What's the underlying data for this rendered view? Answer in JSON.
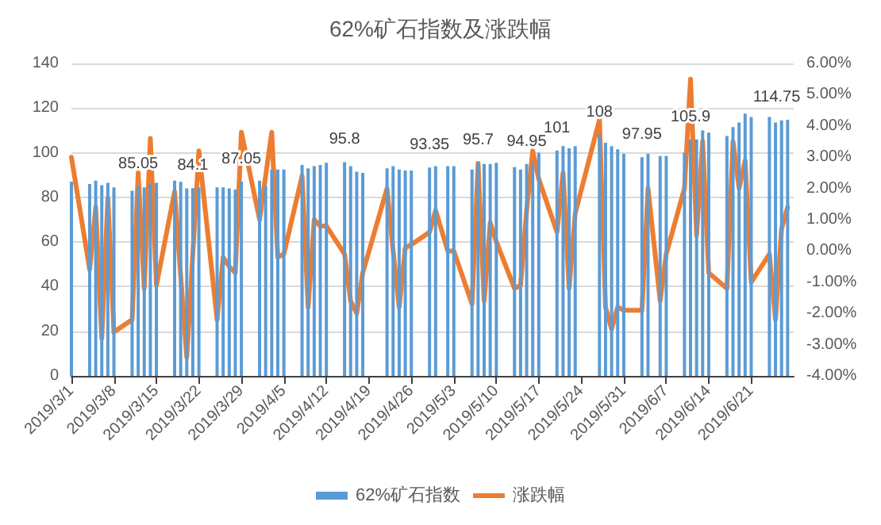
{
  "chart_data": {
    "type": "bar",
    "title": "62%矿石指数及涨跌幅",
    "x": [
      "2019-03-01",
      "2019-03-04",
      "2019-03-05",
      "2019-03-06",
      "2019-03-07",
      "2019-03-08",
      "2019-03-11",
      "2019-03-12",
      "2019-03-13",
      "2019-03-14",
      "2019-03-15",
      "2019-03-18",
      "2019-03-19",
      "2019-03-20",
      "2019-03-21",
      "2019-03-22",
      "2019-03-25",
      "2019-03-26",
      "2019-03-27",
      "2019-03-28",
      "2019-03-29",
      "2019-04-01",
      "2019-04-02",
      "2019-04-03",
      "2019-04-04",
      "2019-04-05",
      "2019-04-08",
      "2019-04-09",
      "2019-04-10",
      "2019-04-11",
      "2019-04-12",
      "2019-04-15",
      "2019-04-16",
      "2019-04-17",
      "2019-04-18",
      "2019-04-22",
      "2019-04-23",
      "2019-04-24",
      "2019-04-25",
      "2019-04-26",
      "2019-04-29",
      "2019-04-30",
      "2019-05-02",
      "2019-05-03",
      "2019-05-06",
      "2019-05-07",
      "2019-05-08",
      "2019-05-09",
      "2019-05-10",
      "2019-05-13",
      "2019-05-14",
      "2019-05-15",
      "2019-05-16",
      "2019-05-17",
      "2019-05-20",
      "2019-05-21",
      "2019-05-22",
      "2019-05-23",
      "2019-05-27",
      "2019-05-28",
      "2019-05-29",
      "2019-05-30",
      "2019-05-31",
      "2019-06-03",
      "2019-06-04",
      "2019-06-06",
      "2019-06-07",
      "2019-06-10",
      "2019-06-11",
      "2019-06-12",
      "2019-06-13",
      "2019-06-14",
      "2019-06-17",
      "2019-06-18",
      "2019-06-19",
      "2019-06-20",
      "2019-06-21",
      "2019-06-24",
      "2019-06-25",
      "2019-06-26",
      "2019-06-27"
    ],
    "series": [
      {
        "name": "62%矿石指数",
        "color": "#5b9bd5",
        "values": [
          87,
          86,
          87.5,
          85.5,
          86.5,
          84.5,
          83,
          85.05,
          84.5,
          86,
          86.5,
          87.5,
          87,
          84,
          84.1,
          84.5,
          84.5,
          84.5,
          84,
          83.5,
          87.05,
          87.5,
          85,
          92.5,
          92.5,
          92.5,
          94.5,
          93,
          94,
          94.5,
          95.5,
          95.8,
          94,
          91.5,
          91,
          93,
          94,
          92.5,
          92,
          92,
          93.35,
          94,
          94,
          94,
          92.5,
          95.7,
          95,
          95,
          95.5,
          93.5,
          92.5,
          94.95,
          95.5,
          100,
          101,
          103,
          102,
          103,
          108,
          104.5,
          103,
          101.5,
          99.5,
          97.95,
          99.5,
          98.5,
          98.5,
          100,
          105.9,
          106,
          110,
          109,
          107.5,
          111.5,
          113.5,
          117.5,
          116,
          116,
          113.5,
          114.5,
          114.75
        ],
        "value_labels": [
          null,
          null,
          null,
          null,
          null,
          null,
          null,
          "85.05",
          null,
          null,
          null,
          null,
          null,
          null,
          "84.1",
          null,
          null,
          null,
          null,
          null,
          "87.05",
          null,
          null,
          null,
          null,
          null,
          null,
          null,
          null,
          null,
          null,
          "95.8",
          null,
          null,
          null,
          null,
          null,
          null,
          null,
          null,
          "93.35",
          null,
          null,
          null,
          null,
          "95.7",
          null,
          null,
          null,
          null,
          null,
          "94.95",
          null,
          null,
          "101",
          null,
          null,
          null,
          "108",
          null,
          null,
          null,
          null,
          "97.95",
          null,
          null,
          null,
          null,
          "105.9",
          null,
          null,
          null,
          null,
          null,
          null,
          null,
          null,
          null,
          null,
          null,
          "114.75"
        ]
      },
      {
        "name": "涨跌幅",
        "type": "line",
        "axis": "y2",
        "color": "#ed7d31",
        "values": [
          3.0,
          -0.6,
          1.4,
          -2.8,
          1.7,
          -2.6,
          -2.2,
          2.5,
          -1.2,
          3.6,
          -1.1,
          1.9,
          -0.8,
          -3.4,
          -0.1,
          3.2,
          -2.2,
          -0.2,
          -0.5,
          -0.7,
          3.8,
          1.0,
          2.4,
          3.8,
          -0.2,
          -0.1,
          2.4,
          -1.8,
          1.0,
          0.8,
          0.8,
          -0.1,
          -1.6,
          -2.0,
          -0.7,
          2.0,
          0.0,
          -1.8,
          0.1,
          0.2,
          0.6,
          1.3,
          0.0,
          0.0,
          -1.7,
          2.8,
          -1.6,
          0.9,
          0.3,
          -1.2,
          -1.1,
          1.3,
          3.2,
          2.3,
          0.6,
          2.5,
          -1.2,
          1.2,
          4.2,
          -1.8,
          -2.5,
          -1.8,
          -1.9,
          -1.9,
          2.0,
          -1.6,
          -0.1,
          2.0,
          5.5,
          0.5,
          3.5,
          -0.7,
          -1.2,
          3.5,
          2.0,
          2.9,
          -1.0,
          -0.1,
          -2.2,
          0.7,
          1.4
        ]
      }
    ],
    "xlim": [
      "2019-03-01",
      "2019-06-28"
    ],
    "xticks": [
      {
        "value": "2019-03-01",
        "label": "2019/3/1"
      },
      {
        "value": "2019-03-08",
        "label": "2019/3/8"
      },
      {
        "value": "2019-03-15",
        "label": "2019/3/15"
      },
      {
        "value": "2019-03-22",
        "label": "2019/3/22"
      },
      {
        "value": "2019-03-29",
        "label": "2019/3/29"
      },
      {
        "value": "2019-04-05",
        "label": "2019/4/5"
      },
      {
        "value": "2019-04-12",
        "label": "2019/4/12"
      },
      {
        "value": "2019-04-19",
        "label": "2019/4/19"
      },
      {
        "value": "2019-04-26",
        "label": "2019/4/26"
      },
      {
        "value": "2019-05-03",
        "label": "2019/5/3"
      },
      {
        "value": "2019-05-10",
        "label": "2019/5/10"
      },
      {
        "value": "2019-05-17",
        "label": "2019/5/17"
      },
      {
        "value": "2019-05-24",
        "label": "2019/5/24"
      },
      {
        "value": "2019-05-31",
        "label": "2019/5/31"
      },
      {
        "value": "2019-06-07",
        "label": "2019/6/7"
      },
      {
        "value": "2019-06-14",
        "label": "2019/6/14"
      },
      {
        "value": "2019-06-21",
        "label": "2019/6/21"
      }
    ],
    "ylim": [
      0,
      140
    ],
    "yticks": [
      0,
      20,
      40,
      60,
      80,
      100,
      120,
      140
    ],
    "y2lim": [
      -4,
      6
    ],
    "y2ticks": [
      {
        "value": -4,
        "label": "-4.00%"
      },
      {
        "value": -3,
        "label": "-3.00%"
      },
      {
        "value": -2,
        "label": "-2.00%"
      },
      {
        "value": -1,
        "label": "-1.00%"
      },
      {
        "value": 0,
        "label": "0.00%"
      },
      {
        "value": 1,
        "label": "1.00%"
      },
      {
        "value": 2,
        "label": "2.00%"
      },
      {
        "value": 3,
        "label": "3.00%"
      },
      {
        "value": 4,
        "label": "4.00%"
      },
      {
        "value": 5,
        "label": "5.00%"
      },
      {
        "value": 6,
        "label": "6.00%"
      }
    ],
    "grid": "y",
    "legend": "bottom",
    "marker": "none",
    "line_style": "solid"
  }
}
